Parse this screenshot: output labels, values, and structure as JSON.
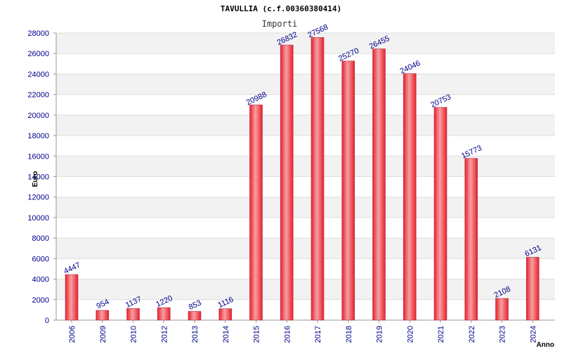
{
  "chart_data": {
    "type": "bar",
    "title": "TAVULLIA (c.f.00360380414)",
    "subtitle": "Importi",
    "xlabel": "Anno",
    "ylabel": "Euro",
    "ylim": [
      0,
      28000
    ],
    "yticks": [
      0,
      2000,
      4000,
      6000,
      8000,
      10000,
      12000,
      14000,
      16000,
      18000,
      20000,
      22000,
      24000,
      26000,
      28000
    ],
    "grid": true,
    "categories": [
      "2006",
      "2009",
      "2010",
      "2012",
      "2013",
      "2014",
      "2015",
      "2016",
      "2017",
      "2018",
      "2019",
      "2020",
      "2021",
      "2022",
      "2023",
      "2024"
    ],
    "values": [
      4447,
      954,
      1137,
      1220,
      853,
      1116,
      20988,
      26832,
      27568,
      25270,
      26455,
      24046,
      20753,
      15773,
      2108,
      6131
    ],
    "data_labels": [
      "4447",
      "954",
      "1137",
      "1220",
      "853",
      "1116",
      "20988",
      "26832",
      "27568",
      "25270",
      "26455",
      "24046",
      "20753",
      "15773",
      "2108",
      "6131"
    ],
    "bar_color": "#e8202a",
    "bar_highlight": "#f6a0a4",
    "bar_border": "#b03050",
    "band_color": "#f2f2f2",
    "label_color": "#00008b"
  }
}
